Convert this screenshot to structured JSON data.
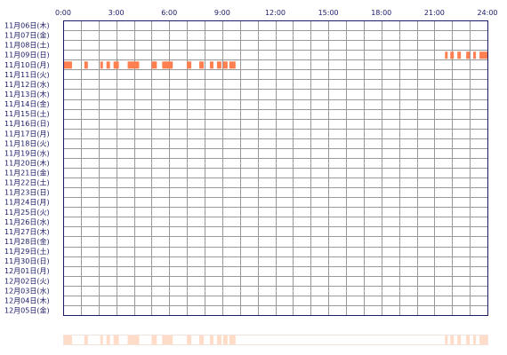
{
  "chart_data": {
    "type": "heatmap",
    "title": "",
    "xlabel": "",
    "ylabel": "",
    "x_ticks": [
      "0:00",
      "3:00",
      "6:00",
      "9:00",
      "12:00",
      "15:00",
      "18:00",
      "21:00",
      "24:00"
    ],
    "xlim_hours": [
      0,
      24
    ],
    "grid": true,
    "days": [
      "11月06日(木)",
      "11月07日(金)",
      "11月08日(土)",
      "11月09日(日)",
      "11月10日(月)",
      "11月11日(火)",
      "11月12日(水)",
      "11月13日(木)",
      "11月14日(金)",
      "11月15日(土)",
      "11月16日(日)",
      "11月17日(月)",
      "11月18日(火)",
      "11月19日(水)",
      "11月20日(木)",
      "11月21日(金)",
      "11月22日(土)",
      "11月23日(日)",
      "11月24日(月)",
      "11月25日(火)",
      "11月26日(水)",
      "11月27日(木)",
      "11月28日(金)",
      "11月29日(土)",
      "11月30日(日)",
      "12月01日(月)",
      "12月02日(火)",
      "12月03日(水)",
      "12月04日(木)",
      "12月05日(金)"
    ],
    "activity": [
      {
        "day": "11月09日(日)",
        "intervals": [
          [
            21.6,
            21.75
          ],
          [
            21.9,
            22.1
          ],
          [
            22.3,
            22.5
          ],
          [
            22.8,
            23.0
          ],
          [
            23.2,
            23.35
          ],
          [
            23.55,
            24.0
          ]
        ]
      },
      {
        "day": "11月10日(月)",
        "intervals": [
          [
            0.0,
            0.5
          ],
          [
            1.2,
            1.4
          ],
          [
            2.1,
            2.25
          ],
          [
            2.45,
            2.65
          ],
          [
            2.85,
            3.15
          ],
          [
            3.65,
            4.3
          ],
          [
            5.0,
            5.3
          ],
          [
            5.6,
            6.2
          ],
          [
            7.0,
            7.25
          ],
          [
            7.7,
            7.95
          ],
          [
            8.3,
            8.5
          ],
          [
            8.7,
            8.95
          ],
          [
            9.05,
            9.3
          ],
          [
            9.4,
            9.75
          ]
        ]
      }
    ],
    "overview_strip": true,
    "colors": {
      "bar": "#ff7f50",
      "overview": "#ffdcc8",
      "grid_border": "#1a1a66",
      "grid_line": "#999999",
      "labels": "#1a1a66"
    }
  }
}
